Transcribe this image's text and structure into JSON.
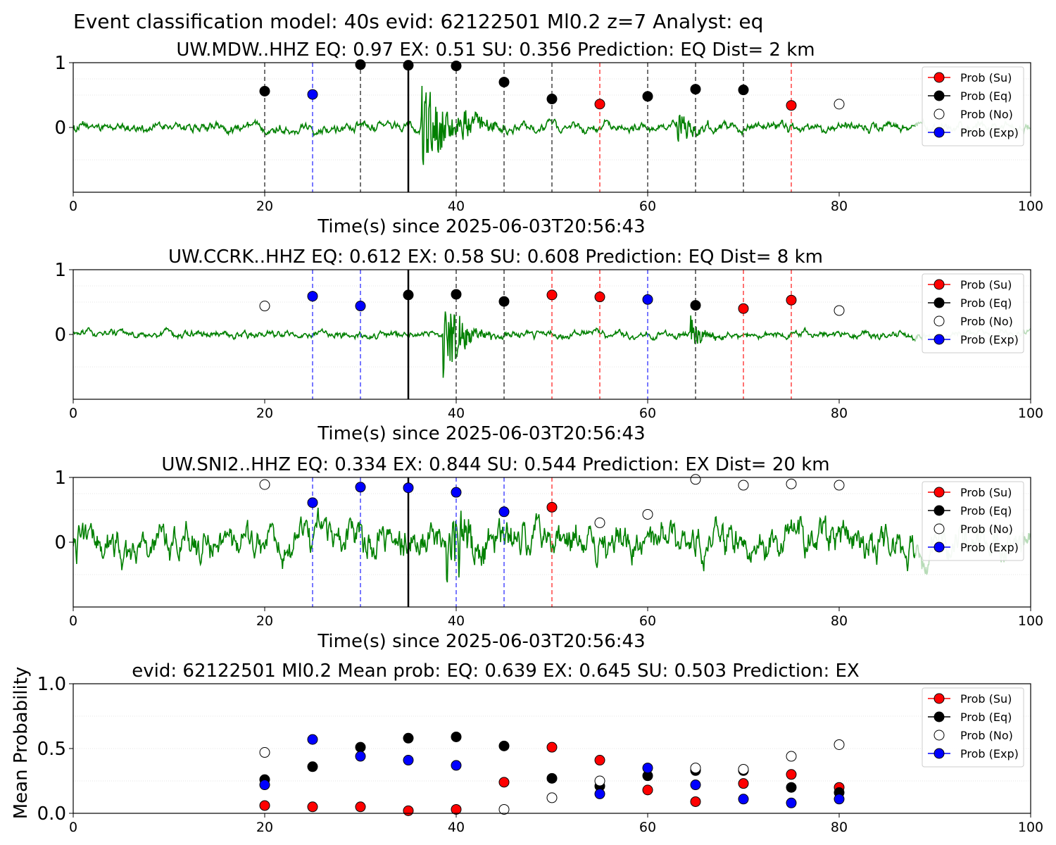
{
  "suptitle": "Event classification model: 40s evid: 62122501 Ml0.2 z=7 Analyst: eq",
  "legend_labels": [
    "Prob (Su)",
    "Prob (Eq)",
    "Prob (No)",
    "Prob (Exp)"
  ],
  "colors": {
    "su": "#ff0000",
    "eq": "#000000",
    "no": "#ffffff",
    "exp": "#0000ff",
    "trace": "#008000",
    "trace_faded": "#b8dcb8"
  },
  "chart_data": [
    {
      "type": "line",
      "title": "UW.MDW..HHZ   EQ: 0.97  EX: 0.51  SU: 0.356   Prediction: EQ    Dist= 2 km",
      "xlabel": "Time(s) since 2025-06-03T20:56:43",
      "ylabel": "",
      "xlim": [
        0,
        100
      ],
      "ylim": [
        -1,
        1
      ],
      "xticks": [
        0,
        20,
        40,
        60,
        80,
        100
      ],
      "yticks": [
        0,
        1
      ],
      "marker_line": 35,
      "noise_level": 0.09,
      "signal_bursts": [
        {
          "t": 36.3,
          "dur": 4.5,
          "amp": 0.9
        },
        {
          "t": 40.5,
          "dur": 4,
          "amp": 0.25
        },
        {
          "t": 63,
          "dur": 4,
          "amp": 0.25
        }
      ],
      "windows": [
        {
          "t": 20,
          "cls": "eq",
          "p": 0.56
        },
        {
          "t": 25,
          "cls": "exp",
          "p": 0.51
        },
        {
          "t": 30,
          "cls": "eq",
          "p": 0.97
        },
        {
          "t": 35,
          "cls": "eq",
          "p": 0.96
        },
        {
          "t": 40,
          "cls": "eq",
          "p": 0.95
        },
        {
          "t": 45,
          "cls": "eq",
          "p": 0.7
        },
        {
          "t": 50,
          "cls": "eq",
          "p": 0.44
        },
        {
          "t": 55,
          "cls": "su",
          "p": 0.36
        },
        {
          "t": 60,
          "cls": "eq",
          "p": 0.48
        },
        {
          "t": 65,
          "cls": "eq",
          "p": 0.59
        },
        {
          "t": 70,
          "cls": "eq",
          "p": 0.58
        },
        {
          "t": 75,
          "cls": "su",
          "p": 0.34
        },
        {
          "t": 80,
          "cls": "no",
          "p": 0.36
        }
      ]
    },
    {
      "type": "line",
      "title": "UW.CCRK..HHZ   EQ: 0.612  EX: 0.58  SU: 0.608   Prediction: EQ    Dist= 8 km",
      "xlabel": "Time(s) since 2025-06-03T20:56:43",
      "ylabel": "",
      "xlim": [
        0,
        100
      ],
      "ylim": [
        -1,
        1
      ],
      "xticks": [
        0,
        20,
        40,
        60,
        80,
        100
      ],
      "yticks": [
        0,
        1
      ],
      "marker_line": 35,
      "noise_level": 0.07,
      "signal_bursts": [
        {
          "t": 38.6,
          "dur": 4,
          "amp": 0.75
        },
        {
          "t": 64.5,
          "dur": 3,
          "amp": 0.25
        }
      ],
      "windows": [
        {
          "t": 20,
          "cls": "no",
          "p": 0.44
        },
        {
          "t": 25,
          "cls": "exp",
          "p": 0.59
        },
        {
          "t": 30,
          "cls": "exp",
          "p": 0.44
        },
        {
          "t": 35,
          "cls": "eq",
          "p": 0.61
        },
        {
          "t": 40,
          "cls": "eq",
          "p": 0.62
        },
        {
          "t": 45,
          "cls": "eq",
          "p": 0.51
        },
        {
          "t": 50,
          "cls": "su",
          "p": 0.61
        },
        {
          "t": 55,
          "cls": "su",
          "p": 0.58
        },
        {
          "t": 60,
          "cls": "exp",
          "p": 0.54
        },
        {
          "t": 65,
          "cls": "eq",
          "p": 0.45
        },
        {
          "t": 70,
          "cls": "su",
          "p": 0.4
        },
        {
          "t": 75,
          "cls": "su",
          "p": 0.53
        },
        {
          "t": 80,
          "cls": "no",
          "p": 0.37
        }
      ]
    },
    {
      "type": "line",
      "title": "UW.SNI2..HHZ   EQ: 0.334  EX: 0.844  SU: 0.544   Prediction: EX    Dist= 20 km",
      "xlabel": "Time(s) since 2025-06-03T20:56:43",
      "ylabel": "",
      "xlim": [
        0,
        100
      ],
      "ylim": [
        -1,
        1
      ],
      "xticks": [
        0,
        20,
        40,
        60,
        80,
        100
      ],
      "yticks": [
        0,
        1
      ],
      "marker_line": 35,
      "noise_level": 0.32,
      "signal_bursts": [
        {
          "t": 39,
          "dur": 7,
          "amp": 0.55
        }
      ],
      "windows": [
        {
          "t": 20,
          "cls": "no",
          "p": 0.89
        },
        {
          "t": 25,
          "cls": "exp",
          "p": 0.61
        },
        {
          "t": 30,
          "cls": "exp",
          "p": 0.85
        },
        {
          "t": 35,
          "cls": "exp",
          "p": 0.84
        },
        {
          "t": 40,
          "cls": "exp",
          "p": 0.77
        },
        {
          "t": 45,
          "cls": "exp",
          "p": 0.47
        },
        {
          "t": 50,
          "cls": "su",
          "p": 0.54
        },
        {
          "t": 55,
          "cls": "no",
          "p": 0.3
        },
        {
          "t": 60,
          "cls": "no",
          "p": 0.43
        },
        {
          "t": 65,
          "cls": "no",
          "p": 0.97
        },
        {
          "t": 70,
          "cls": "no",
          "p": 0.88
        },
        {
          "t": 75,
          "cls": "no",
          "p": 0.9
        },
        {
          "t": 80,
          "cls": "no",
          "p": 0.88
        }
      ]
    },
    {
      "type": "scatter",
      "title": "evid: 62122501  Ml0.2   Mean prob:   EQ: 0.639  EX: 0.645  SU: 0.503   Prediction: EX",
      "xlabel": "",
      "ylabel": "Mean Probability",
      "xlim": [
        0,
        100
      ],
      "ylim": [
        0,
        1
      ],
      "xticks": [
        0,
        20,
        40,
        60,
        80,
        100
      ],
      "yticks": [
        0.0,
        0.5,
        1.0
      ],
      "ytick_labels": [
        "0.0",
        "0.5",
        "1.0"
      ],
      "x": [
        20,
        25,
        30,
        35,
        40,
        45,
        50,
        55,
        60,
        65,
        70,
        75,
        80
      ],
      "series": [
        {
          "name": "Prob (Su)",
          "key": "su",
          "values": [
            0.06,
            0.05,
            0.05,
            0.02,
            0.03,
            0.24,
            0.51,
            0.41,
            0.18,
            0.09,
            0.23,
            0.3,
            0.2
          ]
        },
        {
          "name": "Prob (Eq)",
          "key": "eq",
          "values": [
            0.26,
            0.36,
            0.51,
            0.58,
            0.59,
            0.52,
            0.27,
            0.21,
            0.29,
            0.33,
            0.33,
            0.2,
            0.16
          ]
        },
        {
          "name": "Prob (No)",
          "key": "no",
          "values": [
            0.47,
            null,
            null,
            null,
            null,
            0.03,
            0.12,
            0.25,
            null,
            0.35,
            0.34,
            0.44,
            0.53
          ]
        },
        {
          "name": "Prob (Exp)",
          "key": "exp",
          "values": [
            0.22,
            0.57,
            0.44,
            0.41,
            0.37,
            null,
            null,
            0.15,
            0.35,
            0.22,
            0.11,
            0.08,
            0.11
          ]
        }
      ]
    }
  ]
}
